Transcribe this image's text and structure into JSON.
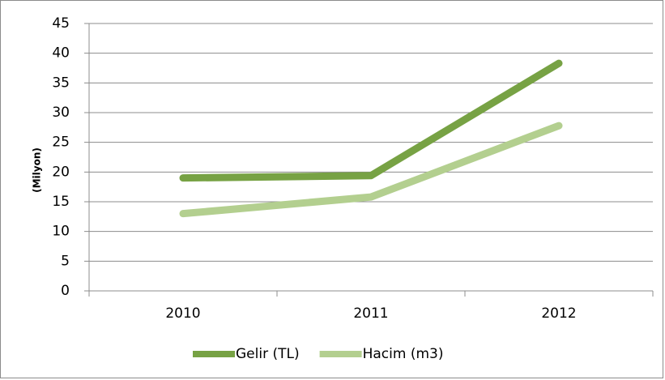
{
  "chart_data": {
    "type": "line",
    "y_label": "(Milyon)",
    "categories": [
      "2010",
      "2011",
      "2012"
    ],
    "series": [
      {
        "name": "Gelir (TL)",
        "color": "#77a244",
        "values": [
          19,
          19.4,
          38.3
        ]
      },
      {
        "name": "Hacim (m3)",
        "color": "#b3cf8f",
        "values": [
          13,
          15.8,
          27.8
        ]
      }
    ],
    "ylim": [
      0,
      45
    ],
    "yticks": [
      0,
      5,
      10,
      15,
      20,
      25,
      30,
      35,
      40,
      45
    ],
    "grid": true,
    "legend": "bottom"
  }
}
